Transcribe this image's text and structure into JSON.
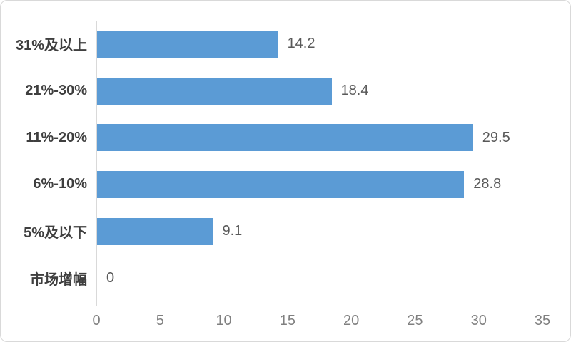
{
  "chart_data": {
    "type": "bar",
    "orientation": "horizontal",
    "title": "",
    "xlabel": "",
    "ylabel": "",
    "categories": [
      "31%及以上",
      "21%-30%",
      "11%-20%",
      "6%-10%",
      "5%及以下",
      "市场增幅"
    ],
    "values": [
      14.2,
      18.4,
      29.5,
      28.8,
      9.1,
      0
    ],
    "value_labels": [
      "14.2",
      "18.4",
      "29.5",
      "28.8",
      "9.1",
      "0"
    ],
    "x_ticks": [
      "0",
      "5",
      "10",
      "15",
      "20",
      "25",
      "30",
      "35"
    ],
    "xlim": [
      0,
      35
    ],
    "grid": false,
    "legend": false,
    "data_labels_position": "outside-end",
    "bar_color": "#5b9bd5",
    "axis_line_color": "#d9d9d9",
    "category_label_color": "#3f3f3f",
    "value_label_color": "#595959",
    "tick_label_color": "#808080",
    "background_color": "#ffffff",
    "border_color": "#d9d9d9"
  }
}
